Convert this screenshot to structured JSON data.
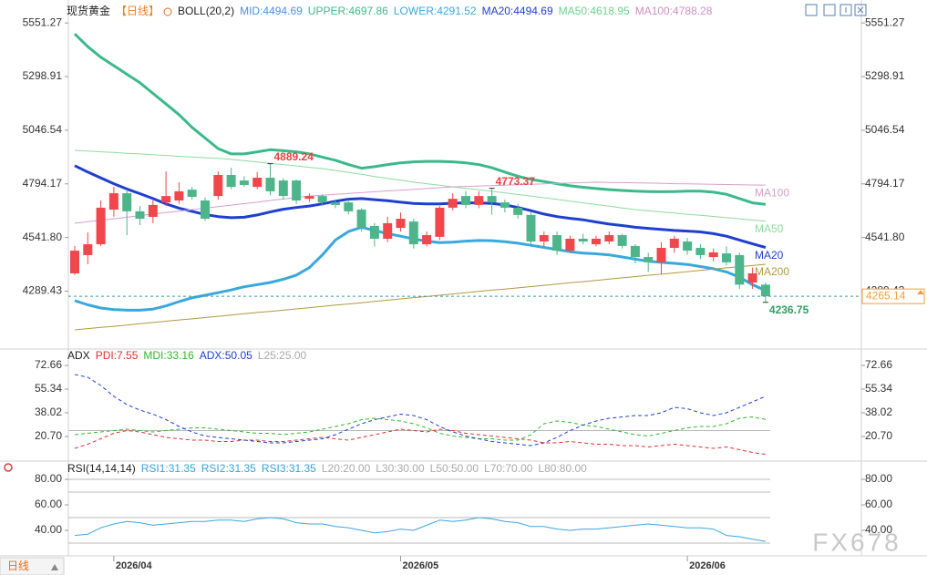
{
  "chart_data": [
    {
      "type": "candlestick",
      "legend": [
        {
          "text": "现货黄金",
          "color": "#222222"
        },
        {
          "text": "【日线】",
          "color": "#f08020"
        },
        {
          "text": "BOLL(20,2)",
          "color": "#222222"
        },
        {
          "text": "MID:4494.69",
          "color": "#4a8fe0"
        },
        {
          "text": "UPPER:4697.86",
          "color": "#3cb98a"
        },
        {
          "text": "LOWER:4291.52",
          "color": "#3aa8dc"
        },
        {
          "text": "MA20:4494.69",
          "color": "#1f3fd0"
        },
        {
          "text": "MA50:4618.95",
          "color": "#6fd08e"
        },
        {
          "text": "MA100:4788.28",
          "color": "#d08ec8"
        }
      ],
      "categories": [
        null,
        null,
        null,
        "2026/04",
        null,
        null,
        null,
        null,
        null,
        null,
        null,
        null,
        null,
        null,
        null,
        null,
        null,
        null,
        null,
        null,
        null,
        null,
        null,
        null,
        null,
        "2026/05",
        null,
        null,
        null,
        null,
        null,
        null,
        null,
        null,
        null,
        null,
        null,
        null,
        null,
        null,
        null,
        null,
        null,
        null,
        null,
        null,
        null,
        "2026/06",
        null,
        null,
        null,
        null,
        null,
        null
      ],
      "open": [
        4373,
        4459,
        4510,
        4673,
        4750,
        4665,
        4639,
        4707,
        4716,
        4767,
        4716,
        4737,
        4836,
        4810,
        4780,
        4823,
        4810,
        4810,
        4724,
        4737,
        4707,
        4707,
        4673,
        4596,
        4536,
        4587,
        4617,
        4510,
        4545,
        4682,
        4737,
        4695,
        4737,
        4707,
        4682,
        4648,
        4523,
        4553,
        4480,
        4536,
        4510,
        4523,
        4553,
        4502,
        4450,
        4425,
        4493,
        4523,
        4493,
        4450,
        4467,
        4459,
        4330,
        4320
      ],
      "high": [
        4502,
        4566,
        4716,
        4780,
        4767,
        4690,
        4716,
        4853,
        4802,
        4780,
        4730,
        4853,
        4870,
        4830,
        4850,
        4889.24,
        4820,
        4815,
        4750,
        4745,
        4715,
        4720,
        4680,
        4610,
        4640,
        4660,
        4630,
        4570,
        4690,
        4750,
        4760,
        4760,
        4773.37,
        4720,
        4700,
        4660,
        4570,
        4570,
        4550,
        4560,
        4550,
        4570,
        4560,
        4510,
        4470,
        4520,
        4550,
        4540,
        4510,
        4490,
        4500,
        4470,
        4400,
        4330
      ],
      "low": [
        4365,
        4416,
        4502,
        4640,
        4553,
        4600,
        4609,
        4690,
        4700,
        4720,
        4620,
        4720,
        4770,
        4780,
        4770,
        4740,
        4720,
        4700,
        4710,
        4690,
        4680,
        4650,
        4570,
        4500,
        4520,
        4570,
        4490,
        4500,
        4530,
        4670,
        4680,
        4680,
        4650,
        4660,
        4630,
        4510,
        4500,
        4460,
        4470,
        4510,
        4500,
        4510,
        4490,
        4420,
        4380,
        4370,
        4470,
        4460,
        4440,
        4430,
        4410,
        4300,
        4300,
        4236.75
      ],
      "close": [
        4480,
        4510,
        4682,
        4750,
        4665,
        4630,
        4695,
        4737,
        4759,
        4733,
        4630,
        4836,
        4780,
        4789,
        4823,
        4759,
        4737,
        4716,
        4737,
        4707,
        4695,
        4665,
        4587,
        4536,
        4609,
        4630,
        4510,
        4553,
        4682,
        4724,
        4695,
        4737,
        4707,
        4682,
        4648,
        4523,
        4553,
        4480,
        4536,
        4523,
        4536,
        4553,
        4502,
        4450,
        4425,
        4493,
        4536,
        4480,
        4459,
        4472,
        4425,
        4320,
        4373,
        4265.14
      ],
      "up_color": "#f0474d",
      "down_color": "#4db589",
      "series": [
        {
          "color": "#3cb98a",
          "width": 3,
          "values": [
            5500,
            5440,
            5390,
            5350,
            5310,
            5270,
            5220,
            5170,
            5120,
            5060,
            5010,
            4960,
            4935,
            4935,
            4945,
            4955,
            4950,
            4945,
            4935,
            4920,
            4905,
            4885,
            4868,
            4875,
            4885,
            4893,
            4898,
            4900,
            4900,
            4898,
            4893,
            4885,
            4870,
            4850,
            4830,
            4815,
            4805,
            4795,
            4785,
            4778,
            4772,
            4767,
            4763,
            4760,
            4758,
            4757,
            4758,
            4760,
            4760,
            4755,
            4745,
            4725,
            4705,
            4697.86
          ]
        },
        {
          "name": "MA20",
          "color": "#1f3fd0",
          "width": 3,
          "values": [
            4880,
            4850,
            4822,
            4795,
            4770,
            4748,
            4725,
            4700,
            4680,
            4665,
            4650,
            4640,
            4635,
            4637,
            4648,
            4662,
            4675,
            4683,
            4690,
            4700,
            4712,
            4722,
            4725,
            4720,
            4715,
            4708,
            4702,
            4700,
            4700,
            4703,
            4705,
            4705,
            4702,
            4695,
            4683,
            4668,
            4652,
            4640,
            4632,
            4625,
            4615,
            4605,
            4598,
            4590,
            4585,
            4580,
            4575,
            4572,
            4568,
            4560,
            4548,
            4530,
            4512,
            4494.69
          ]
        },
        {
          "color": "#3aa8dc",
          "width": 3,
          "values": [
            4245,
            4225,
            4210,
            4203,
            4200,
            4200,
            4205,
            4220,
            4240,
            4258,
            4270,
            4282,
            4295,
            4310,
            4320,
            4330,
            4345,
            4365,
            4400,
            4460,
            4530,
            4570,
            4590,
            4575,
            4560,
            4548,
            4535,
            4525,
            4518,
            4520,
            4525,
            4528,
            4527,
            4522,
            4515,
            4505,
            4495,
            4485,
            4475,
            4468,
            4465,
            4460,
            4450,
            4440,
            4430,
            4425,
            4420,
            4415,
            4405,
            4395,
            4380,
            4355,
            4320,
            4291.52
          ]
        },
        {
          "name": "MA50",
          "color": "#8edc9e",
          "width": 1,
          "values": [
            4952,
            4949,
            4945,
            4942,
            4938,
            4935,
            4931,
            4928,
            4924,
            4921,
            4917,
            4914,
            4910,
            4904,
            4897,
            4891,
            4885,
            4879,
            4872,
            4866,
            4857,
            4848,
            4839,
            4829,
            4820,
            4811,
            4802,
            4795,
            4788,
            4780,
            4773,
            4766,
            4759,
            4752,
            4744,
            4737,
            4729,
            4721,
            4713,
            4705,
            4697,
            4689,
            4681,
            4673,
            4668,
            4662,
            4657,
            4651,
            4646,
            4641,
            4635,
            4630,
            4624,
            4618.95
          ]
        },
        {
          "name": "MA100",
          "color": "#d79ed0",
          "width": 1,
          "values": [
            4609,
            4616,
            4623,
            4630,
            4637,
            4645,
            4652,
            4659,
            4666,
            4673,
            4680,
            4687,
            4694,
            4701,
            4708,
            4716,
            4723,
            4730,
            4737,
            4741,
            4745,
            4749,
            4753,
            4757,
            4761,
            4764,
            4768,
            4772,
            4776,
            4780,
            4782,
            4784,
            4786,
            4788,
            4790,
            4792,
            4794,
            4796,
            4798,
            4800,
            4802,
            4801,
            4800,
            4799,
            4798,
            4797,
            4795,
            4794,
            4793,
            4792,
            4791,
            4790,
            4789,
            4788.28
          ]
        },
        {
          "name": "MA200",
          "color": "#b09a40",
          "width": 1,
          "values": [
            4107,
            4113,
            4119,
            4124,
            4130,
            4136,
            4142,
            4148,
            4154,
            4159,
            4165,
            4171,
            4177,
            4183,
            4189,
            4194,
            4200,
            4206,
            4212,
            4218,
            4224,
            4229,
            4235,
            4241,
            4247,
            4253,
            4259,
            4264,
            4270,
            4276,
            4282,
            4288,
            4294,
            4299,
            4305,
            4311,
            4317,
            4323,
            4329,
            4334,
            4340,
            4346,
            4352,
            4358,
            4364,
            4369,
            4375,
            4381,
            4387,
            4393,
            4399,
            4404,
            4410,
            4416
          ]
        }
      ],
      "annotations": [
        {
          "value": 4889.24,
          "color": "#e84040"
        },
        {
          "value": 4773.37,
          "color": "#e84040"
        },
        {
          "value": 4236.75,
          "color": "#2f9e62"
        }
      ],
      "last_price": 4265.14,
      "price_color": "#f0a040",
      "ylim": [
        4030,
        5595
      ],
      "yticks": [
        5551.27,
        5298.91,
        5046.54,
        4794.17,
        {
          "value": 4541.8,
          "label": "4541.80"
        },
        4289.43
      ]
    },
    {
      "type": "line",
      "legend": [
        {
          "text": "ADX",
          "color": "#222222"
        },
        {
          "text": "PDI:7.55",
          "color": "#e03030"
        },
        {
          "text": "MDI:33.16",
          "color": "#30b830"
        },
        {
          "text": "ADX:50.05",
          "color": "#2040d0"
        },
        {
          "text": "L25:25.00",
          "color": "#aaaaaa"
        }
      ],
      "series": [
        {
          "color": "#e03030",
          "width": 1,
          "dashed": true,
          "values": [
            12,
            15,
            19,
            23,
            25,
            24,
            22,
            20,
            19,
            18,
            18,
            17,
            17,
            18,
            18,
            17,
            17,
            18,
            19,
            20,
            19,
            18,
            20,
            22,
            24,
            26,
            25,
            24,
            26,
            25,
            23,
            22,
            21,
            20,
            19,
            18,
            16,
            16,
            17,
            16,
            15,
            15,
            14,
            14,
            13,
            14,
            15,
            14,
            13,
            12,
            13,
            11,
            9,
            7.55
          ]
        },
        {
          "color": "#30b830",
          "width": 1,
          "dashed": true,
          "values": [
            22,
            23,
            24,
            25,
            26,
            25,
            24,
            25,
            26,
            27,
            27,
            26,
            25,
            24,
            23,
            23,
            22,
            23,
            24,
            26,
            28,
            30,
            33,
            34,
            33,
            32,
            30,
            27,
            23,
            21,
            20,
            19,
            19,
            18,
            18,
            22,
            30,
            32,
            31,
            29,
            28,
            26,
            24,
            22,
            21,
            23,
            25,
            27,
            28,
            28,
            30,
            34,
            35,
            33.16
          ]
        },
        {
          "color": "#2040d0",
          "width": 1,
          "dashed": true,
          "values": [
            66,
            64,
            58,
            50,
            44,
            40,
            37,
            33,
            28,
            24,
            21,
            20,
            19,
            18,
            17,
            16,
            16,
            17,
            18,
            19,
            22,
            26,
            30,
            33,
            35,
            37,
            36,
            33,
            28,
            24,
            21,
            19,
            17,
            16,
            15,
            14,
            16,
            20,
            25,
            29,
            32,
            34,
            35,
            36,
            36,
            38,
            42,
            41,
            38,
            36,
            38,
            42,
            46,
            50.05
          ]
        }
      ],
      "levels": [
        25
      ],
      "level_color": "#b8b8b8",
      "ylim": [
        6.7,
        80
      ],
      "yticks": [
        72.66,
        55.34,
        38.02,
        {
          "value": 20.7,
          "label": "20.70"
        }
      ]
    },
    {
      "type": "line",
      "legend": [
        {
          "text": "RSI(14,14,14)",
          "color": "#222222"
        },
        {
          "text": "RSI1:31.35",
          "color": "#3aa0d8"
        },
        {
          "text": "RSI2:31.35",
          "color": "#3aa0d8"
        },
        {
          "text": "RSI3:31.35",
          "color": "#3aa0d8"
        },
        {
          "text": "L20:20.00",
          "color": "#aaaaaa"
        },
        {
          "text": "L30:30.00",
          "color": "#aaaaaa"
        },
        {
          "text": "L50:50.00",
          "color": "#aaaaaa"
        },
        {
          "text": "L70:70.00",
          "color": "#aaaaaa"
        },
        {
          "text": "L80:80.00",
          "color": "#aaaaaa"
        }
      ],
      "series": [
        {
          "color": "#3aa8e0",
          "width": 1,
          "values": [
            36,
            37,
            42,
            45,
            47,
            46,
            44,
            45,
            46,
            47,
            47,
            48,
            48,
            47,
            49,
            50,
            49,
            46,
            45,
            45,
            43,
            42,
            40,
            38,
            39,
            41,
            40,
            44,
            48,
            47,
            48,
            50,
            49,
            47,
            46,
            43,
            43,
            41,
            40,
            41,
            41,
            42,
            43,
            44,
            45,
            44,
            43,
            42,
            42,
            41,
            36,
            35,
            33,
            31.35
          ]
        }
      ],
      "levels": [
        20,
        30,
        50,
        70,
        80
      ],
      "level_color": "#b8b8b8",
      "ylim": [
        21.4,
        87.9
      ],
      "yticks": [
        {
          "value": 80,
          "label": "80.00"
        },
        {
          "value": 60,
          "label": "60.00"
        },
        {
          "value": 40,
          "label": "40.00"
        }
      ]
    }
  ],
  "period_button": "日线",
  "watermark": "FX678"
}
